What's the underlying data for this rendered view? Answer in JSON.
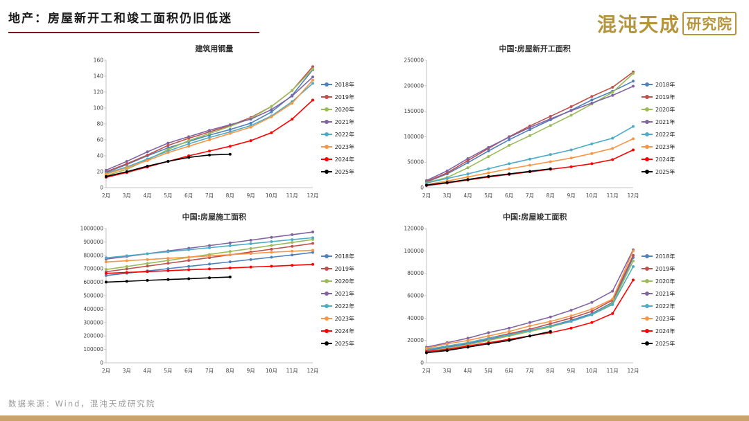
{
  "header": {
    "title": "地产：房屋新开工和竣工面积仍旧低迷",
    "accent_color": "#7b1517"
  },
  "logo": {
    "main": "混沌天成",
    "box": "研究院",
    "color": "#b5953c"
  },
  "footer": {
    "source": "数据来源：Wind，混沌天成研究院",
    "bar_color": "#c9a36a"
  },
  "chart_data": [
    {
      "type": "line",
      "title": "建筑用钢量",
      "xlabel": "",
      "ylabel": "",
      "ylim": [
        0,
        160
      ],
      "ystep": 20,
      "grid": false,
      "legend_position": "right",
      "categories": [
        "2月",
        "3月",
        "4月",
        "5月",
        "6月",
        "7月",
        "8月",
        "9月",
        "10月",
        "11月",
        "12月"
      ],
      "series": [
        {
          "name": "2018年",
          "color": "#4F81BD",
          "values": [
            19,
            29,
            40,
            50,
            58,
            66,
            73,
            81,
            95,
            116,
            148
          ]
        },
        {
          "name": "2019年",
          "color": "#C0504D",
          "values": [
            20,
            30,
            41,
            53,
            62,
            70,
            78,
            88,
            102,
            122,
            152
          ]
        },
        {
          "name": "2020年",
          "color": "#9BBB59",
          "values": [
            15,
            23,
            35,
            48,
            59,
            68,
            77,
            87,
            102,
            122,
            149
          ]
        },
        {
          "name": "2021年",
          "color": "#8064A2",
          "values": [
            22,
            33,
            45,
            56,
            64,
            72,
            79,
            86,
            98,
            115,
            139
          ]
        },
        {
          "name": "2022年",
          "color": "#4BACC6",
          "values": [
            18,
            26,
            36,
            46,
            55,
            63,
            70,
            78,
            90,
            108,
            131
          ]
        },
        {
          "name": "2023年",
          "color": "#F79646",
          "values": [
            17,
            25,
            34,
            44,
            52,
            60,
            68,
            76,
            89,
            106,
            135
          ]
        },
        {
          "name": "2024年",
          "color": "#FF0000",
          "values": [
            13,
            19,
            26,
            33,
            40,
            46,
            52,
            59,
            69,
            86,
            110
          ]
        },
        {
          "name": "2025年",
          "color": "#000000",
          "values": [
            14,
            20,
            27,
            33,
            38,
            41,
            42
          ]
        }
      ]
    },
    {
      "type": "line",
      "title": "中国:房屋新开工面积",
      "xlabel": "",
      "ylabel": "",
      "ylim": [
        0,
        250000
      ],
      "ystep": 50000,
      "grid": false,
      "legend_position": "right",
      "categories": [
        "2月",
        "3月",
        "4月",
        "5月",
        "6月",
        "7月",
        "8月",
        "9月",
        "10月",
        "11月",
        "12月"
      ],
      "series": [
        {
          "name": "2018年",
          "color": "#4F81BD",
          "values": [
            11000,
            27000,
            49000,
            72000,
            94000,
            114000,
            133000,
            152000,
            172000,
            189000,
            209000
          ]
        },
        {
          "name": "2019年",
          "color": "#C0504D",
          "values": [
            12000,
            29000,
            53000,
            77000,
            100000,
            121000,
            140000,
            159000,
            179000,
            197000,
            227000
          ]
        },
        {
          "name": "2020年",
          "color": "#9BBB59",
          "values": [
            10000,
            20000,
            39000,
            61000,
            83000,
            102000,
            122000,
            142000,
            164000,
            187000,
            224000
          ]
        },
        {
          "name": "2021年",
          "color": "#8064A2",
          "values": [
            14000,
            33000,
            57000,
            79000,
            99000,
            118000,
            135000,
            151000,
            166000,
            181000,
            199000
          ]
        },
        {
          "name": "2022年",
          "color": "#4BACC6",
          "values": [
            9000,
            18000,
            27000,
            37000,
            47000,
            56000,
            65000,
            74000,
            86000,
            97000,
            120000
          ]
        },
        {
          "name": "2023年",
          "color": "#F79646",
          "values": [
            6000,
            13000,
            21000,
            29000,
            37000,
            44000,
            51000,
            58000,
            67000,
            77000,
            96000
          ]
        },
        {
          "name": "2024年",
          "color": "#FF0000",
          "values": [
            4000,
            9000,
            15000,
            21000,
            26000,
            31000,
            36000,
            41000,
            47000,
            55000,
            74000
          ]
        },
        {
          "name": "2025年",
          "color": "#000000",
          "values": [
            5000,
            10000,
            16000,
            22000,
            27000,
            32000,
            37000
          ]
        }
      ]
    },
    {
      "type": "line",
      "title": "中国:房屋施工面积",
      "xlabel": "",
      "ylabel": "",
      "ylim": [
        0,
        1000000
      ],
      "ystep": 100000,
      "grid": false,
      "legend_position": "right",
      "categories": [
        "2月",
        "3月",
        "4月",
        "5月",
        "6月",
        "7月",
        "8月",
        "9月",
        "10月",
        "11月",
        "12月"
      ],
      "series": [
        {
          "name": "2018年",
          "color": "#4F81BD",
          "values": [
            650000,
            667000,
            684000,
            701000,
            718000,
            735000,
            752000,
            769000,
            786000,
            803000,
            822000
          ]
        },
        {
          "name": "2019年",
          "color": "#C0504D",
          "values": [
            678000,
            699000,
            720000,
            741000,
            762000,
            783000,
            804000,
            825000,
            846000,
            867000,
            889000
          ]
        },
        {
          "name": "2020年",
          "color": "#9BBB59",
          "values": [
            695000,
            717000,
            740000,
            762000,
            785000,
            807000,
            829000,
            851000,
            874000,
            896000,
            918000
          ]
        },
        {
          "name": "2021年",
          "color": "#8064A2",
          "values": [
            772000,
            792000,
            812000,
            833000,
            853000,
            873000,
            893000,
            913000,
            934000,
            954000,
            974000
          ]
        },
        {
          "name": "2022年",
          "color": "#4BACC6",
          "values": [
            782000,
            797000,
            812000,
            827000,
            842000,
            857000,
            872000,
            887000,
            902000,
            917000,
            931000
          ]
        },
        {
          "name": "2023年",
          "color": "#F79646",
          "values": [
            751000,
            760000,
            769000,
            778000,
            787000,
            796000,
            805000,
            814000,
            823000,
            831000,
            838000
          ]
        },
        {
          "name": "2024年",
          "color": "#FF0000",
          "values": [
            666000,
            673000,
            679000,
            686000,
            693000,
            699000,
            706000,
            713000,
            719000,
            726000,
            733000
          ]
        },
        {
          "name": "2025年",
          "color": "#000000",
          "values": [
            601000,
            607000,
            614000,
            620000,
            626000,
            633000,
            639000
          ]
        }
      ]
    },
    {
      "type": "line",
      "title": "中国:房屋竣工面积",
      "xlabel": "",
      "ylabel": "",
      "ylim": [
        0,
        120000
      ],
      "ystep": 20000,
      "grid": false,
      "legend_position": "right",
      "categories": [
        "2月",
        "3月",
        "4月",
        "5月",
        "6月",
        "7月",
        "8月",
        "9月",
        "10月",
        "11月",
        "12月"
      ],
      "series": [
        {
          "name": "2018年",
          "color": "#4F81BD",
          "values": [
            11000,
            14000,
            17000,
            21000,
            25000,
            29000,
            33000,
            38000,
            44000,
            54000,
            94000
          ]
        },
        {
          "name": "2019年",
          "color": "#C0504D",
          "values": [
            12000,
            15000,
            18000,
            22000,
            26000,
            30000,
            35000,
            40000,
            46000,
            56000,
            96000
          ]
        },
        {
          "name": "2020年",
          "color": "#9BBB59",
          "values": [
            10000,
            13000,
            16000,
            20000,
            24000,
            28000,
            32000,
            37000,
            43000,
            53000,
            91000
          ]
        },
        {
          "name": "2021年",
          "color": "#8064A2",
          "values": [
            14000,
            18000,
            22000,
            27000,
            31000,
            36000,
            41000,
            47000,
            54000,
            64000,
            101000
          ]
        },
        {
          "name": "2022年",
          "color": "#4BACC6",
          "values": [
            12000,
            15000,
            18000,
            22000,
            25000,
            29000,
            33000,
            37000,
            43000,
            52000,
            86000
          ]
        },
        {
          "name": "2023年",
          "color": "#F79646",
          "values": [
            13000,
            17000,
            20000,
            24000,
            28000,
            33000,
            37000,
            42000,
            48000,
            57000,
            100000
          ]
        },
        {
          "name": "2024年",
          "color": "#FF0000",
          "values": [
            10000,
            12000,
            15000,
            18000,
            21000,
            24000,
            27000,
            31000,
            36000,
            44000,
            74000
          ]
        },
        {
          "name": "2025年",
          "color": "#000000",
          "values": [
            9000,
            11000,
            14000,
            17000,
            20000,
            24000,
            28000
          ]
        }
      ]
    }
  ]
}
